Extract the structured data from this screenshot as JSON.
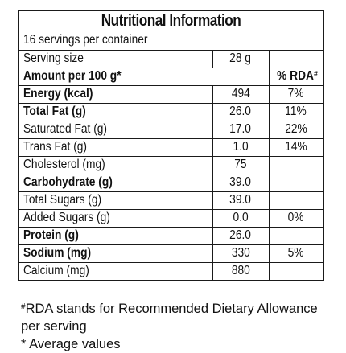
{
  "title": "Nutritional Information",
  "servings_per_container": "16 servings per container",
  "serving_size": {
    "label": "Serving size",
    "value": "28 g"
  },
  "header": {
    "amount_label": "Amount per 100 g*",
    "rda_label": "% RDA",
    "rda_mark": "#"
  },
  "rows": [
    {
      "label": "Energy (kcal)",
      "value": "494",
      "rda": "7%",
      "bold": true
    },
    {
      "label": "Total Fat (g)",
      "value": "26.0",
      "rda": "11%",
      "bold": true
    },
    {
      "label": "Saturated Fat (g)",
      "value": "17.0",
      "rda": "22%",
      "bold": false
    },
    {
      "label": "Trans Fat (g)",
      "value": "1.0",
      "rda": "14%",
      "bold": false
    },
    {
      "label": "Cholesterol (mg)",
      "value": "75",
      "rda": "",
      "bold": false
    },
    {
      "label": "Carbohydrate (g)",
      "value": "39.0",
      "rda": "",
      "bold": true
    },
    {
      "label": "Total Sugars (g)",
      "value": "39.0",
      "rda": "",
      "bold": false
    },
    {
      "label": "Added Sugars (g)",
      "value": "0.0",
      "rda": "0%",
      "bold": false
    },
    {
      "label": "Protein (g)",
      "value": "26.0",
      "rda": "",
      "bold": true
    },
    {
      "label": "Sodium (mg)",
      "value": "330",
      "rda": "5%",
      "bold": true
    },
    {
      "label": "Calcium (mg)",
      "value": "880",
      "rda": "",
      "bold": false
    }
  ],
  "footnotes": {
    "rda_mark": "#",
    "rda_text": "RDA stands for Recommended Dietary Allowance per serving",
    "average_text": "* Average values"
  }
}
